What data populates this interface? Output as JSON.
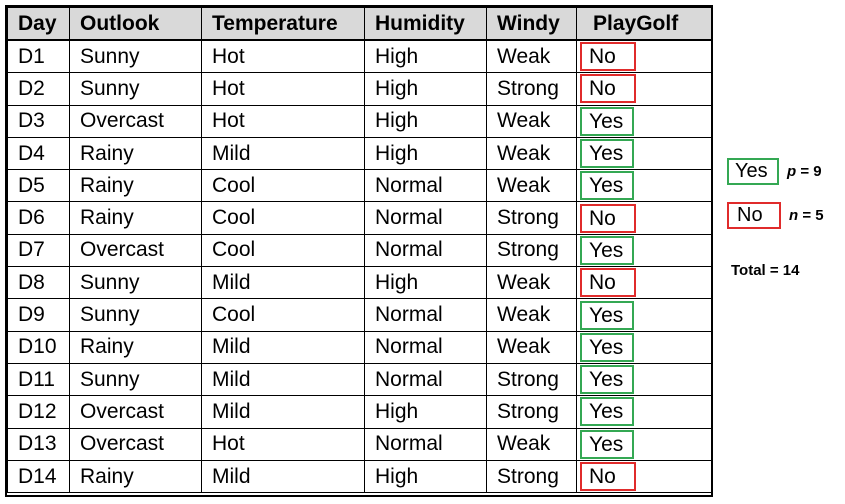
{
  "table": {
    "columns": [
      "Day",
      "Outlook",
      "Temperature",
      "Humidity",
      "Windy",
      "PlayGolf"
    ],
    "rows": [
      {
        "day": "D1",
        "outlook": "Sunny",
        "temperature": "Hot",
        "humidity": "High",
        "windy": "Weak",
        "play": "No"
      },
      {
        "day": "D2",
        "outlook": "Sunny",
        "temperature": "Hot",
        "humidity": "High",
        "windy": "Strong",
        "play": "No"
      },
      {
        "day": "D3",
        "outlook": "Overcast",
        "temperature": "Hot",
        "humidity": "High",
        "windy": "Weak",
        "play": "Yes"
      },
      {
        "day": "D4",
        "outlook": "Rainy",
        "temperature": "Mild",
        "humidity": "High",
        "windy": "Weak",
        "play": "Yes"
      },
      {
        "day": "D5",
        "outlook": "Rainy",
        "temperature": "Cool",
        "humidity": "Normal",
        "windy": "Weak",
        "play": "Yes"
      },
      {
        "day": "D6",
        "outlook": "Rainy",
        "temperature": "Cool",
        "humidity": "Normal",
        "windy": "Strong",
        "play": "No"
      },
      {
        "day": "D7",
        "outlook": "Overcast",
        "temperature": "Cool",
        "humidity": "Normal",
        "windy": "Strong",
        "play": "Yes"
      },
      {
        "day": "D8",
        "outlook": "Sunny",
        "temperature": "Mild",
        "humidity": "High",
        "windy": "Weak",
        "play": "No"
      },
      {
        "day": "D9",
        "outlook": "Sunny",
        "temperature": "Cool",
        "humidity": "Normal",
        "windy": "Weak",
        "play": "Yes"
      },
      {
        "day": "D10",
        "outlook": "Rainy",
        "temperature": "Mild",
        "humidity": "Normal",
        "windy": "Weak",
        "play": "Yes"
      },
      {
        "day": "D11",
        "outlook": "Sunny",
        "temperature": "Mild",
        "humidity": "Normal",
        "windy": "Strong",
        "play": "Yes"
      },
      {
        "day": "D12",
        "outlook": "Overcast",
        "temperature": "Mild",
        "humidity": "High",
        "windy": "Strong",
        "play": "Yes"
      },
      {
        "day": "D13",
        "outlook": "Overcast",
        "temperature": "Hot",
        "humidity": "Normal",
        "windy": "Weak",
        "play": "Yes"
      },
      {
        "day": "D14",
        "outlook": "Rainy",
        "temperature": "Mild",
        "humidity": "High",
        "windy": "Strong",
        "play": "No"
      }
    ]
  },
  "legend": {
    "yes_label": "Yes",
    "p_var": "p",
    "p_value": "= 9",
    "no_label": "No",
    "n_var": "n",
    "n_value": "= 5",
    "total": "Total = 14"
  },
  "colors": {
    "header_bg": "#d9d9d9",
    "yes_border": "#34a853",
    "no_border": "#e02b2b"
  }
}
